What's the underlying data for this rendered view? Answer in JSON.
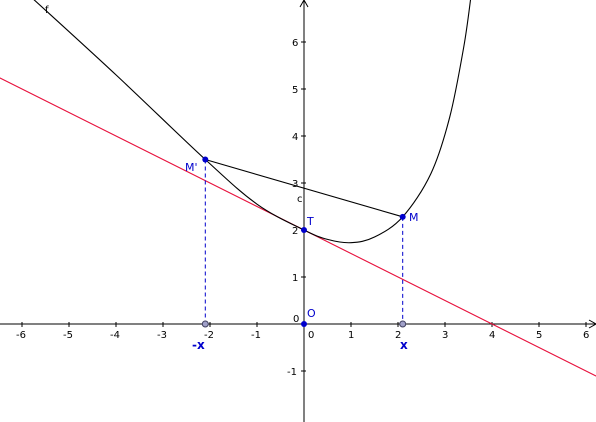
{
  "graph": {
    "x_range": [
      -6.2,
      6.2
    ],
    "y_range": [
      -2.1,
      6.9
    ],
    "x_ticks": [
      -6,
      -5,
      -4,
      -3,
      -2,
      -1,
      1,
      2,
      3,
      4,
      5,
      6
    ],
    "y_ticks": [
      -1,
      1,
      2,
      3,
      4,
      5,
      6
    ],
    "origin_tick": "0",
    "x_tick_labels": [
      "-6",
      "-5",
      "-4",
      "-3",
      "-2",
      "-1",
      "1",
      "2",
      "3",
      "4",
      "5",
      "6"
    ],
    "y_tick_labels": [
      "-1",
      "1",
      "2",
      "3",
      "4",
      "5",
      "6"
    ],
    "x_origin_label": "0",
    "y_origin_label": "0"
  },
  "curve_f": {
    "name": "f",
    "color": "#000000",
    "domain": [
      -5.8,
      3.55
    ],
    "description_points": [
      [
        -2.1,
        3.5
      ],
      [
        0,
        2
      ],
      [
        1,
        1.75
      ],
      [
        2.1,
        2.28
      ]
    ]
  },
  "line_tangent": {
    "color": "#e8103c",
    "slope": -0.5,
    "intercept": 2
  },
  "segment_c": {
    "name": "c",
    "from": "M'",
    "to": "M"
  },
  "points": {
    "M": {
      "label": "M",
      "x": 2.1,
      "y": 2.28,
      "color": "#0000cc"
    },
    "M_prime": {
      "label": "M'",
      "x": -2.1,
      "y": 3.5,
      "color": "#0000cc"
    },
    "T": {
      "label": "T",
      "x": 0,
      "y": 2,
      "color": "#0000cc"
    },
    "O": {
      "label": "O",
      "x": 0,
      "y": 0,
      "color": "#0000cc"
    },
    "X_pos": {
      "label": "x",
      "x": 2.1,
      "y": 0
    },
    "X_neg": {
      "label": "-x",
      "x": -2.1,
      "y": 0
    }
  },
  "labels": {
    "f": "f",
    "c": "c",
    "M": "M",
    "M_prime": "M'",
    "T": "T",
    "O": "O",
    "x": "x",
    "neg_x": "-x"
  },
  "colors": {
    "axis": "#000000",
    "point": "#0000cc",
    "point_gray": "#a0a0c8",
    "dashed": "#0000cc"
  }
}
